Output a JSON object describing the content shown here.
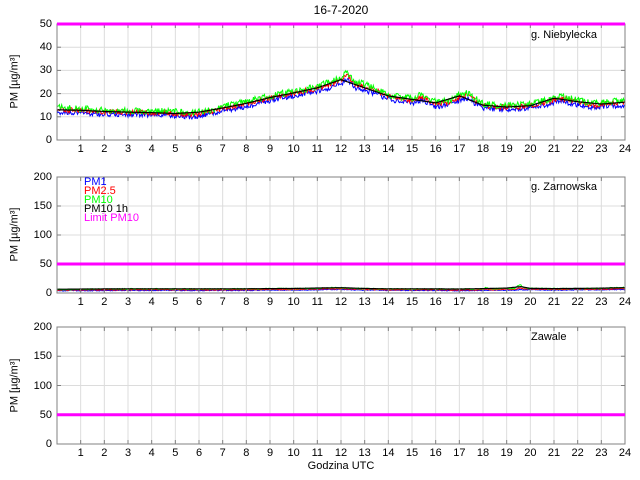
{
  "title": "16-7-2020",
  "xlabel": "Godzina UTC",
  "ylabel": "PM [µg/m³]",
  "colors": {
    "grid": "#dcdcdc",
    "frame": "#808080",
    "pm1": "#0000ff",
    "pm25": "#ff0000",
    "pm10": "#00ff00",
    "pm10_1h": "#000000",
    "limit": "#ff00ff"
  },
  "legend": {
    "items": [
      {
        "label": "PM1",
        "color": "#0000ff"
      },
      {
        "label": "PM2.5",
        "color": "#ff0000"
      },
      {
        "label": "PM10",
        "color": "#00ff00"
      },
      {
        "label": "PM10 1h",
        "color": "#000000"
      },
      {
        "label": "Limit PM10",
        "color": "#ff00ff"
      }
    ]
  },
  "chart_data": [
    {
      "type": "line",
      "station": "g. Niebylecka",
      "xlim": [
        0,
        24
      ],
      "ylim": [
        0,
        50
      ],
      "xticks": [
        1,
        2,
        3,
        4,
        5,
        6,
        7,
        8,
        9,
        10,
        11,
        12,
        13,
        14,
        15,
        16,
        17,
        18,
        19,
        20,
        21,
        22,
        23,
        24
      ],
      "yticks": [
        0,
        10,
        20,
        30,
        40,
        50
      ],
      "grid": true,
      "limit_pm10": 50,
      "series": [
        {
          "name": "PM1",
          "color": "#0000ff",
          "noise": 1.1,
          "width": 1,
          "x": [
            0,
            0.5,
            1,
            2,
            3,
            4,
            5,
            5.7,
            6.5,
            7,
            8,
            9,
            10,
            11,
            11.7,
            12.3,
            12.6,
            13,
            13.5,
            14,
            15,
            15.4,
            16,
            16.6,
            17,
            17.3,
            18,
            18.7,
            19.5,
            20,
            20.8,
            21.3,
            22,
            22.7,
            23.3,
            24
          ],
          "values": [
            12,
            11.8,
            11.6,
            11.2,
            11,
            10.8,
            10.5,
            10,
            11.2,
            12.5,
            14.5,
            17,
            19,
            21,
            23,
            26,
            22.5,
            21.5,
            19.8,
            17.5,
            16,
            17.2,
            14.5,
            15,
            17,
            18,
            13.8,
            13.2,
            13.3,
            13.8,
            15.5,
            16.8,
            15,
            14,
            14.6,
            15
          ]
        },
        {
          "name": "PM2.5",
          "color": "#ff0000",
          "noise": 1.1,
          "width": 1,
          "x": [
            0,
            0.5,
            1,
            2,
            3,
            4,
            5,
            5.7,
            6.5,
            7,
            8,
            9,
            10,
            11,
            11.7,
            12.3,
            12.6,
            13,
            13.5,
            14,
            15,
            15.4,
            16,
            16.6,
            17,
            17.3,
            18,
            18.7,
            19.5,
            20,
            20.8,
            21.3,
            22,
            22.7,
            23.3,
            24
          ],
          "values": [
            13,
            12.9,
            12.7,
            12.2,
            12,
            11.8,
            11.5,
            10.9,
            12.2,
            13.6,
            15.6,
            18.2,
            20.2,
            22.2,
            24.5,
            27.8,
            24,
            23,
            21.2,
            18.7,
            17.2,
            18.6,
            15.7,
            16.2,
            18.5,
            19.5,
            14.8,
            14.2,
            14.3,
            14.8,
            16.7,
            18,
            16.2,
            15,
            15.7,
            16.2
          ]
        },
        {
          "name": "PM10",
          "color": "#00ff00",
          "noise": 1.4,
          "width": 1,
          "x": [
            0,
            0.5,
            1,
            2,
            3,
            4,
            5,
            5.7,
            6.5,
            7,
            8,
            9,
            10,
            11,
            11.7,
            12.3,
            12.6,
            13,
            13.5,
            14,
            15,
            15.4,
            16,
            16.6,
            17,
            17.3,
            18,
            18.7,
            19.5,
            20,
            20.8,
            21.3,
            22,
            22.7,
            23.3,
            24
          ],
          "values": [
            14,
            13.8,
            13.5,
            13,
            12.7,
            12.5,
            12.2,
            11.5,
            13,
            14.5,
            16.5,
            19,
            21,
            23,
            25.5,
            29,
            25,
            24,
            22,
            19.5,
            18,
            19.5,
            16.5,
            17,
            19.5,
            20.5,
            15.5,
            14.8,
            15,
            15.5,
            17.5,
            19,
            17,
            15.8,
            16.5,
            17
          ]
        },
        {
          "name": "PM10 1h",
          "color": "#000000",
          "noise": 0,
          "width": 1.2,
          "x": [
            0,
            1,
            2,
            3,
            4,
            5,
            6,
            7,
            8,
            9,
            10,
            11,
            12,
            13,
            14,
            15,
            16,
            17,
            18,
            19,
            20,
            21,
            22,
            23,
            24
          ],
          "values": [
            13,
            12.8,
            12.3,
            12,
            11.8,
            11.4,
            12,
            13.8,
            15.8,
            18.3,
            20.3,
            22.5,
            26,
            22.5,
            19,
            17.5,
            16,
            19,
            15,
            14.2,
            14.8,
            18,
            16.5,
            15.5,
            16.3
          ]
        }
      ]
    },
    {
      "type": "line",
      "station": "g. Zarnowska",
      "xlim": [
        0,
        24
      ],
      "ylim": [
        0,
        200
      ],
      "xticks": [
        1,
        2,
        3,
        4,
        5,
        6,
        7,
        8,
        9,
        10,
        11,
        12,
        13,
        14,
        15,
        16,
        17,
        18,
        19,
        20,
        21,
        22,
        23,
        24
      ],
      "yticks": [
        0,
        50,
        100,
        150,
        200
      ],
      "grid": true,
      "limit_pm10": 50,
      "series": [
        {
          "name": "PM1",
          "color": "#0000ff",
          "noise": 0.7,
          "width": 1,
          "x": [
            0,
            1,
            2,
            3,
            4,
            5,
            6,
            7,
            8,
            9,
            10,
            11,
            11.5,
            12,
            13,
            14,
            15,
            16,
            17,
            18,
            18.15,
            18.3,
            19,
            19.35,
            19.55,
            19.75,
            20,
            21,
            22,
            23,
            23.5,
            24
          ],
          "values": [
            4,
            4.2,
            4.2,
            4.5,
            4.5,
            4.5,
            4.5,
            4.5,
            4.5,
            5,
            5,
            5.5,
            6,
            6,
            5,
            4.5,
            4.5,
            4.5,
            4,
            4.5,
            5,
            4.5,
            5,
            5,
            6,
            5.5,
            5.5,
            5,
            5.5,
            5.5,
            6,
            6
          ]
        },
        {
          "name": "PM2.5",
          "color": "#ff0000",
          "noise": 0.7,
          "width": 1,
          "x": [
            0,
            1,
            2,
            3,
            4,
            5,
            6,
            7,
            8,
            9,
            10,
            11,
            11.5,
            12,
            13,
            14,
            15,
            16,
            17,
            18,
            18.15,
            18.3,
            19,
            19.35,
            19.55,
            19.75,
            20,
            21,
            22,
            23,
            23.5,
            24
          ],
          "values": [
            5,
            5.3,
            5.4,
            5.6,
            5.6,
            5.6,
            5.6,
            5.6,
            5.6,
            6.1,
            6.1,
            6.8,
            7.3,
            7.3,
            6.1,
            5.6,
            5.6,
            5.6,
            5.1,
            5.6,
            7,
            5.6,
            6.3,
            6.3,
            9,
            6.8,
            6.6,
            6.1,
            6.5,
            6.6,
            7.3,
            7.5
          ]
        },
        {
          "name": "PM10",
          "color": "#00ff00",
          "noise": 0.9,
          "width": 1,
          "x": [
            0,
            1,
            2,
            3,
            4,
            5,
            6,
            7,
            8,
            9,
            10,
            11,
            11.5,
            12,
            13,
            14,
            15,
            16,
            17,
            18,
            18.15,
            18.3,
            19,
            19.35,
            19.55,
            19.75,
            20,
            21,
            22,
            23,
            23.5,
            24
          ],
          "values": [
            6,
            6.5,
            6.5,
            7,
            7,
            7,
            7,
            7,
            7,
            7.5,
            7.5,
            8,
            9,
            9,
            7.5,
            7,
            7,
            7,
            6.5,
            7,
            10,
            7,
            8,
            8,
            15,
            8.5,
            8,
            7.5,
            7.5,
            8,
            9,
            9.5
          ]
        },
        {
          "name": "PM10 1h",
          "color": "#000000",
          "noise": 0,
          "width": 1.2,
          "x": [
            0,
            1,
            2,
            3,
            4,
            5,
            6,
            7,
            8,
            9,
            10,
            11,
            12,
            13,
            14,
            15,
            16,
            17,
            18,
            19,
            19.6,
            20,
            21,
            22,
            23,
            24
          ],
          "values": [
            6.5,
            6.8,
            7,
            7.2,
            7.2,
            7.2,
            7.2,
            7.2,
            7.3,
            7.6,
            7.8,
            8.6,
            9.2,
            7.8,
            7.2,
            7.2,
            7.1,
            6.8,
            7.6,
            8.5,
            11,
            8,
            7.6,
            7.9,
            8.4,
            9.2
          ]
        }
      ]
    },
    {
      "type": "line",
      "station": "Zawale",
      "xlim": [
        0,
        24
      ],
      "ylim": [
        0,
        200
      ],
      "xticks": [
        1,
        2,
        3,
        4,
        5,
        6,
        7,
        8,
        9,
        10,
        11,
        12,
        13,
        14,
        15,
        16,
        17,
        18,
        19,
        20,
        21,
        22,
        23,
        24
      ],
      "yticks": [
        0,
        50,
        100,
        150,
        200
      ],
      "grid": true,
      "limit_pm10": 50,
      "series": []
    }
  ]
}
